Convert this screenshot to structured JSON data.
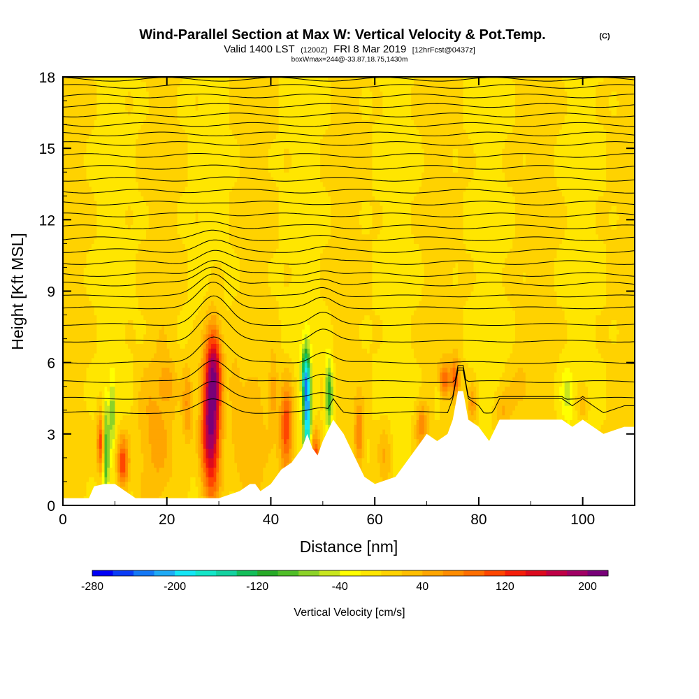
{
  "title": {
    "main": "Wind-Parallel Section at Max W: Vertical Velocity & Pot.Temp.",
    "mark": "(C)",
    "line2_a": "Valid 1400 LST",
    "line2_b": "(1200Z)",
    "line2_c": "FRI 8 Mar 2019",
    "line2_d": "[12hrFcst@0437z]",
    "line3": "boxWmax=244@-33.87,18.75,1430m"
  },
  "chart_data": {
    "type": "heatmap",
    "xlabel": "Distance [nm]",
    "ylabel": "Height [Kft MSL]",
    "xlim": [
      0,
      110
    ],
    "ylim": [
      0,
      18
    ],
    "x_ticks": [
      0,
      20,
      40,
      60,
      80,
      100
    ],
    "y_ticks": [
      0,
      3,
      6,
      9,
      12,
      15,
      18
    ],
    "x_tick_labels": [
      "0",
      "20",
      "40",
      "60",
      "80",
      "100"
    ],
    "y_tick_labels": [
      "0",
      "3",
      "6",
      "9",
      "12",
      "15",
      "18"
    ],
    "colorbar": {
      "label": "Vertical Velocity [cm/s]",
      "min": -280,
      "max": 220,
      "tick_values": [
        -280,
        -200,
        -120,
        -40,
        40,
        120,
        200
      ],
      "tick_labels": [
        "-280",
        "-200",
        "-120",
        "-40",
        "40",
        "120",
        "200"
      ],
      "colors": [
        "#0000f5",
        "#0a3cf5",
        "#1478f5",
        "#1eaaf5",
        "#14e6f5",
        "#14e6c8",
        "#14d2a0",
        "#14be5a",
        "#28aa28",
        "#50be28",
        "#8cd228",
        "#c8e61e",
        "#ffff00",
        "#ffe600",
        "#ffd200",
        "#ffbe00",
        "#ffa500",
        "#ff8c00",
        "#ff6e00",
        "#ff4600",
        "#f51e0a",
        "#dc0a1e",
        "#be0046",
        "#a00064",
        "#780078"
      ]
    },
    "terrain": {
      "x": [
        0,
        5,
        6,
        8,
        10,
        12,
        14,
        16,
        18,
        20,
        22,
        26,
        30,
        34,
        36,
        37,
        38,
        40,
        42,
        44,
        45,
        46,
        47,
        48,
        49,
        50,
        52,
        54,
        56,
        58,
        60,
        64,
        66,
        68,
        70,
        72,
        74,
        75,
        76,
        77,
        78,
        80,
        82,
        84,
        86,
        90,
        96,
        98,
        100,
        104,
        108,
        110
      ],
      "height": [
        0.3,
        0.3,
        0.8,
        0.9,
        0.9,
        0.6,
        0.3,
        0.3,
        0.3,
        0.3,
        0.3,
        0.3,
        0.3,
        0.6,
        0.9,
        0.9,
        0.6,
        0.9,
        1.5,
        1.8,
        2.1,
        2.4,
        3.0,
        2.4,
        2.1,
        2.7,
        3.6,
        3.0,
        2.1,
        1.2,
        0.9,
        1.2,
        1.8,
        2.4,
        3.0,
        2.7,
        3.0,
        3.6,
        4.8,
        4.8,
        3.6,
        3.3,
        2.7,
        3.6,
        3.6,
        3.6,
        3.6,
        3.3,
        3.6,
        3.0,
        3.3,
        3.3
      ]
    },
    "features": [
      {
        "x": 28.5,
        "z": 3.5,
        "sx": 1.3,
        "sz": 2.3,
        "w": 220
      },
      {
        "x": 29.2,
        "z": 6.0,
        "sx": 1.0,
        "sz": 1.2,
        "w": 90
      },
      {
        "x": 43.0,
        "z": 3.2,
        "sx": 0.9,
        "sz": 1.4,
        "w": 125
      },
      {
        "x": 7.5,
        "z": 2.6,
        "sx": 0.6,
        "sz": 0.9,
        "w": 140
      },
      {
        "x": 11.5,
        "z": 1.8,
        "sx": 0.8,
        "sz": 0.8,
        "w": 120
      },
      {
        "x": 8.2,
        "z": 2.4,
        "sx": 0.45,
        "sz": 1.3,
        "w": -140
      },
      {
        "x": 9.5,
        "z": 4.0,
        "sx": 0.4,
        "sz": 1.0,
        "w": -70
      },
      {
        "x": 47.0,
        "z": 3.7,
        "sx": 0.5,
        "sz": 1.8,
        "w": -210
      },
      {
        "x": 46.5,
        "z": 5.5,
        "sx": 0.5,
        "sz": 0.8,
        "w": -100
      },
      {
        "x": 51.2,
        "z": 4.7,
        "sx": 0.5,
        "sz": 1.0,
        "w": -130
      },
      {
        "x": 48.6,
        "z": 2.2,
        "sx": 0.7,
        "sz": 0.7,
        "w": 110
      },
      {
        "x": 57.0,
        "z": 3.0,
        "sx": 0.6,
        "sz": 0.9,
        "w": 80
      },
      {
        "x": 62.0,
        "z": 2.0,
        "sx": 1.0,
        "sz": 1.0,
        "w": 45
      },
      {
        "x": 69.0,
        "z": 3.4,
        "sx": 0.8,
        "sz": 0.7,
        "w": 70
      },
      {
        "x": 73.5,
        "z": 5.3,
        "sx": 0.9,
        "sz": 0.5,
        "w": 85
      },
      {
        "x": 75.5,
        "z": 5.3,
        "sx": 0.6,
        "sz": 0.6,
        "w": 95
      },
      {
        "x": 78.8,
        "z": 4.2,
        "sx": 0.6,
        "sz": 0.6,
        "w": 60
      },
      {
        "x": 84.5,
        "z": 4.0,
        "sx": 1.2,
        "sz": 0.6,
        "w": 45
      },
      {
        "x": 17.5,
        "z": 3.0,
        "sx": 2.5,
        "sz": 2.0,
        "w": 40
      },
      {
        "x": 36.0,
        "z": 2.5,
        "sx": 2.0,
        "sz": 1.5,
        "w": 35
      },
      {
        "x": 24.0,
        "z": 4.2,
        "sx": 0.7,
        "sz": 1.2,
        "w": 60
      },
      {
        "x": 20.0,
        "z": 5.2,
        "sx": 1.0,
        "sz": 0.6,
        "w": 40
      },
      {
        "x": 40.5,
        "z": 4.8,
        "sx": 0.6,
        "sz": 1.0,
        "w": 55
      },
      {
        "x": 72.0,
        "z": 4.6,
        "sx": 0.5,
        "sz": 0.6,
        "w": -45
      },
      {
        "x": 97.0,
        "z": 4.6,
        "sx": 0.8,
        "sz": 0.8,
        "w": -40
      },
      {
        "x": 100.0,
        "z": 4.2,
        "sx": 0.8,
        "sz": 0.5,
        "w": 35
      },
      {
        "x": 88.0,
        "z": 5.0,
        "sx": 1.5,
        "sz": 0.8,
        "w": 25
      },
      {
        "x": 33.0,
        "z": 5.0,
        "sx": 1.0,
        "sz": 1.0,
        "w": 30
      }
    ],
    "contour_levels_kft": [
      3.9,
      4.5,
      5.2,
      6.0,
      6.9,
      7.6,
      8.3,
      8.8,
      9.3,
      9.7,
      10.2,
      10.7,
      11.2,
      11.7,
      12.2,
      12.7,
      13.2,
      13.7,
      14.2,
      14.7,
      15.2,
      15.6,
      16.0,
      16.4,
      16.8,
      17.2,
      17.6,
      17.9
    ]
  }
}
